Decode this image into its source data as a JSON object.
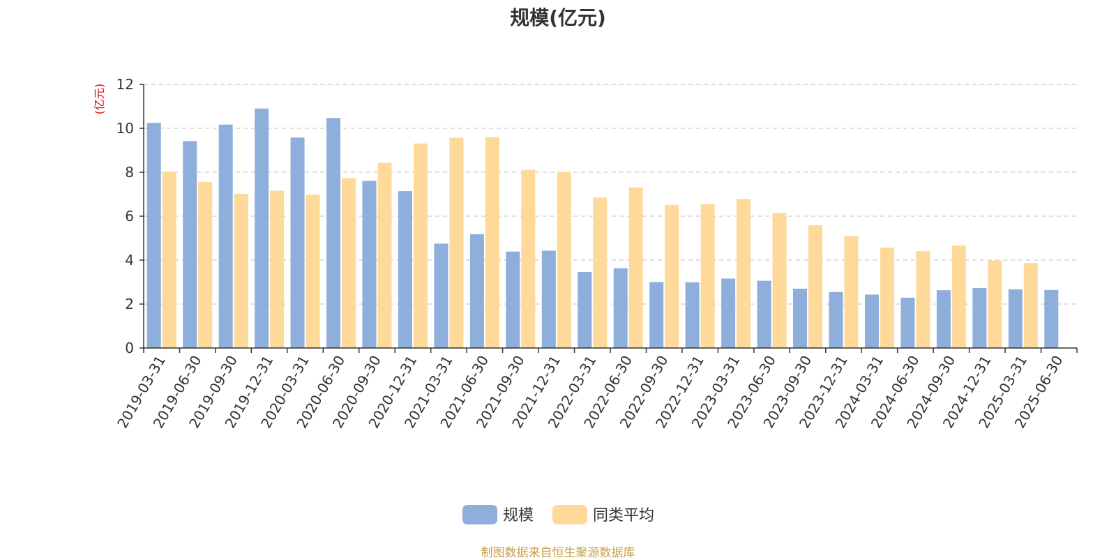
{
  "chart_data": {
    "type": "bar",
    "title": "规模(亿元)",
    "ylabel": "(亿元)",
    "ylim": [
      0,
      12
    ],
    "yticks": [
      0,
      2,
      4,
      6,
      8,
      10,
      12
    ],
    "grid": true,
    "legend_position": "bottom-center",
    "categories": [
      "2019-03-31",
      "2019-06-30",
      "2019-09-30",
      "2019-12-31",
      "2020-03-31",
      "2020-06-30",
      "2020-09-30",
      "2020-12-31",
      "2021-03-31",
      "2021-06-30",
      "2021-09-30",
      "2021-12-31",
      "2022-03-31",
      "2022-06-30",
      "2022-09-30",
      "2022-12-31",
      "2023-03-31",
      "2023-06-30",
      "2023-09-30",
      "2023-12-31",
      "2024-03-31",
      "2024-06-30",
      "2024-09-30",
      "2024-12-31",
      "2025-03-31",
      "2025-06-30"
    ],
    "series": [
      {
        "name": "规模",
        "color": "#8eaedc",
        "values": [
          10.25,
          9.42,
          10.17,
          10.9,
          9.58,
          10.47,
          7.61,
          7.14,
          4.75,
          5.18,
          4.39,
          4.43,
          3.46,
          3.63,
          3.0,
          2.99,
          3.16,
          3.06,
          2.7,
          2.55,
          2.43,
          2.29,
          2.63,
          2.73,
          2.67,
          2.64
        ]
      },
      {
        "name": "同类平均",
        "color": "#ffd99a",
        "values": [
          8.03,
          7.56,
          7.02,
          7.16,
          6.98,
          7.73,
          8.43,
          9.31,
          9.57,
          9.6,
          8.11,
          8.01,
          6.85,
          7.31,
          6.51,
          6.55,
          6.78,
          6.14,
          5.59,
          5.09,
          4.57,
          4.41,
          4.66,
          3.98,
          3.87,
          null
        ]
      }
    ]
  },
  "footer": {
    "source": "制图数据来自恒生聚源数据库"
  }
}
